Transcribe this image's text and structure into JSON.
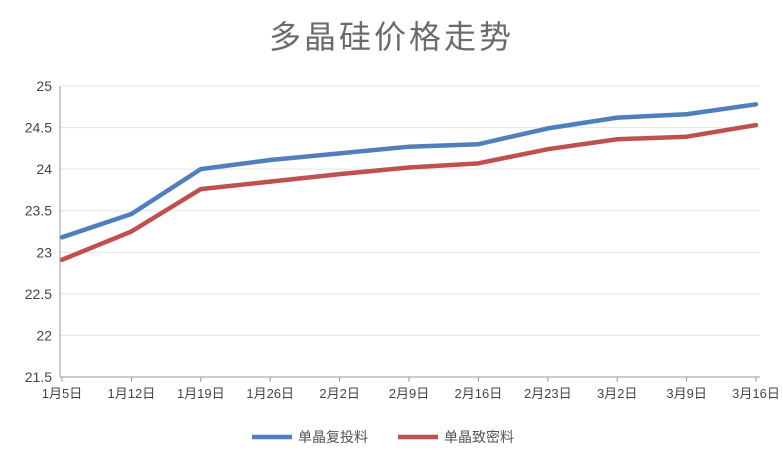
{
  "chart_data": {
    "type": "line",
    "title": "多晶硅价格走势",
    "xlabel": "",
    "ylabel": "",
    "categories": [
      "1月5日",
      "1月12日",
      "1月19日",
      "1月26日",
      "2月2日",
      "2月9日",
      "2月16日",
      "2月23日",
      "3月2日",
      "3月9日",
      "3月16日"
    ],
    "ylim": [
      21.5,
      25
    ],
    "yticks": [
      "25",
      "24.5",
      "24",
      "23.5",
      "23",
      "22.5",
      "22",
      "21.5"
    ],
    "grid": true,
    "legend_position": "bottom",
    "series": [
      {
        "name": "单晶复投料",
        "color": "#4f7fbd",
        "values": [
          23.18,
          23.46,
          24.0,
          24.11,
          24.19,
          24.27,
          24.3,
          24.49,
          24.62,
          24.66,
          24.78
        ]
      },
      {
        "name": "单晶致密料",
        "color": "#c0504d",
        "values": [
          22.91,
          23.25,
          23.76,
          23.85,
          23.94,
          24.02,
          24.07,
          24.24,
          24.36,
          24.39,
          24.53
        ]
      }
    ]
  }
}
